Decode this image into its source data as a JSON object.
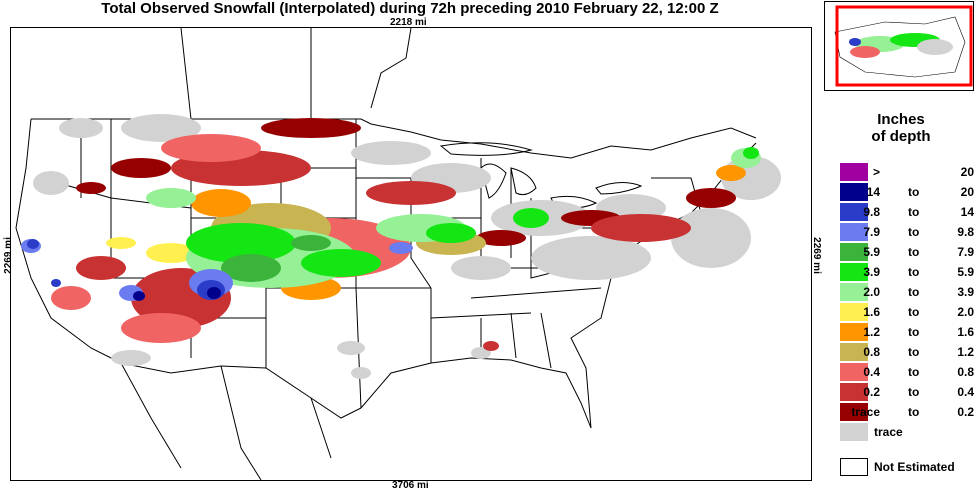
{
  "title": "Total Observed Snowfall (Interpolated) during 72h preceding 2010 February 22, 12:00 Z",
  "distances": {
    "top": "2218 mi",
    "bottom": "3706 mi",
    "left": "2269 mi",
    "right": "2269 mi"
  },
  "legend": {
    "title_line1": "Inches",
    "title_line2": "of depth",
    "entries": [
      {
        "lo": ">",
        "to": "",
        "hi": "20",
        "color": "#a000a0"
      },
      {
        "lo": "14",
        "to": "to",
        "hi": "20",
        "color": "#00008c"
      },
      {
        "lo": "9.8",
        "to": "to",
        "hi": "14",
        "color": "#2a3cc8"
      },
      {
        "lo": "7.9",
        "to": "to",
        "hi": "9.8",
        "color": "#6b7bf0"
      },
      {
        "lo": "5.9",
        "to": "to",
        "hi": "7.9",
        "color": "#3cb43c"
      },
      {
        "lo": "3.9",
        "to": "to",
        "hi": "5.9",
        "color": "#14e614"
      },
      {
        "lo": "2.0",
        "to": "to",
        "hi": "3.9",
        "color": "#96f096"
      },
      {
        "lo": "1.6",
        "to": "to",
        "hi": "2.0",
        "color": "#fff050"
      },
      {
        "lo": "1.2",
        "to": "to",
        "hi": "1.6",
        "color": "#ff9600"
      },
      {
        "lo": "0.8",
        "to": "to",
        "hi": "1.2",
        "color": "#c8b450"
      },
      {
        "lo": "0.4",
        "to": "to",
        "hi": "0.8",
        "color": "#f06464"
      },
      {
        "lo": "0.2",
        "to": "to",
        "hi": "0.4",
        "color": "#c83232"
      },
      {
        "lo": "trace",
        "to": "to",
        "hi": "0.2",
        "color": "#960000"
      },
      {
        "single": "trace",
        "color": "#d2d2d2"
      }
    ],
    "not_estimated": "Not Estimated"
  },
  "inset": {
    "highlight_color": "#ff0000"
  }
}
